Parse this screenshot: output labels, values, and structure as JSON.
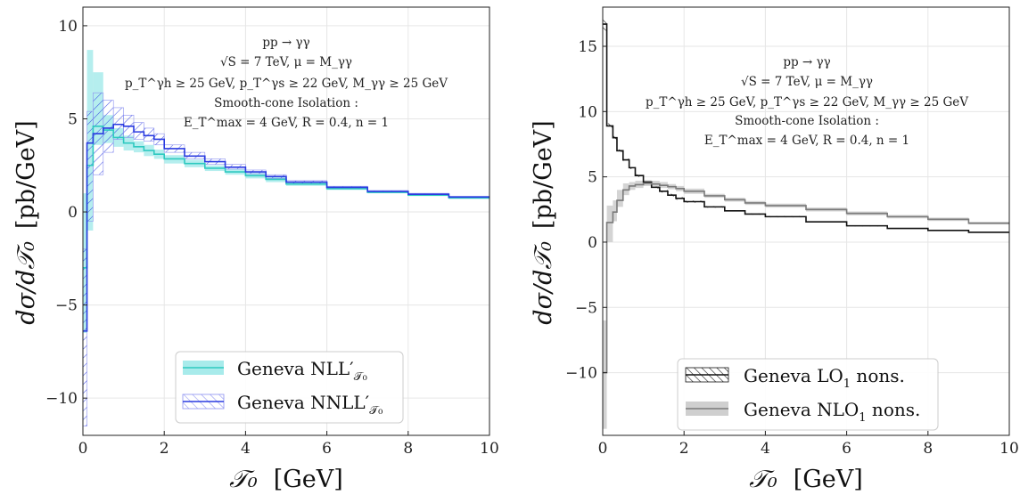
{
  "chart_data": [
    {
      "type": "line",
      "title": "",
      "xlabel_symbol": "𝒯₀",
      "xlabel_unit": "[GeV]",
      "ylabel_symbol": "dσ/d𝒯₀",
      "ylabel_unit": "[pb/GeV]",
      "xlim": [
        0,
        10
      ],
      "ylim": [
        -12,
        11
      ],
      "xticks": [
        "0",
        "2",
        "4",
        "6",
        "8",
        "10"
      ],
      "yticks": [
        "−10",
        "−5",
        "0",
        "5",
        "10"
      ],
      "grid": true,
      "legend_position": "lower-center",
      "annotation": [
        "pp → γγ",
        "√S = 7 TeV, μ = M_γγ",
        "p_T^γh ≥ 25 GeV,  p_T^γs ≥ 22 GeV,  M_γγ ≥ 25 GeV",
        "Smooth-cone Isolation :",
        "E_T^max = 4 GeV,  R = 0.4,  n = 1"
      ],
      "bin_edges": [
        0,
        0.1,
        0.25,
        0.5,
        0.75,
        1.0,
        1.25,
        1.5,
        1.75,
        2.0,
        2.5,
        3.0,
        3.5,
        4.0,
        4.5,
        5.0,
        6.0,
        7.0,
        8.0,
        9.0,
        10.0
      ],
      "series": [
        {
          "name": "GENEVA NLL′_𝒯₀",
          "legend_main": "Geneva NLL′",
          "legend_sub": "𝒯₀",
          "color": "#2ec9c0",
          "band_color": "#a8ebeb",
          "values": [
            -3.0,
            2.5,
            4.6,
            4.4,
            4.0,
            3.7,
            3.5,
            3.3,
            3.1,
            2.85,
            2.6,
            2.35,
            2.15,
            1.95,
            1.75,
            1.5,
            1.25,
            1.05,
            0.9,
            0.75
          ],
          "lower": [
            -6.5,
            -1.0,
            3.6,
            3.7,
            3.5,
            3.3,
            3.2,
            3.0,
            2.85,
            2.6,
            2.4,
            2.2,
            2.0,
            1.8,
            1.6,
            1.4,
            1.18,
            1.0,
            0.85,
            0.7
          ],
          "upper": [
            1.0,
            8.7,
            7.5,
            5.2,
            4.5,
            4.1,
            3.8,
            3.6,
            3.35,
            3.05,
            2.8,
            2.5,
            2.3,
            2.1,
            1.9,
            1.6,
            1.32,
            1.1,
            0.95,
            0.8
          ]
        },
        {
          "name": "GENEVA NNLL′_𝒯₀",
          "legend_main": "Geneva NNLL′",
          "legend_sub": "𝒯₀",
          "color": "#2a3be0",
          "band_color": "#7a86f0",
          "values": [
            -6.4,
            3.7,
            4.2,
            4.5,
            4.7,
            4.6,
            4.3,
            4.1,
            3.9,
            3.4,
            3.0,
            2.7,
            2.4,
            2.15,
            1.9,
            1.6,
            1.32,
            1.1,
            0.95,
            0.8
          ],
          "lower": [
            -11.5,
            -0.5,
            2.0,
            3.2,
            3.9,
            4.0,
            3.9,
            3.8,
            3.6,
            3.2,
            2.85,
            2.55,
            2.3,
            2.05,
            1.8,
            1.52,
            1.26,
            1.05,
            0.9,
            0.76
          ],
          "upper": [
            -2.0,
            5.4,
            6.4,
            6.0,
            5.6,
            5.2,
            4.8,
            4.5,
            4.2,
            3.6,
            3.2,
            2.85,
            2.55,
            2.25,
            2.0,
            1.68,
            1.38,
            1.15,
            1.0,
            0.84
          ]
        }
      ]
    },
    {
      "type": "line",
      "title": "",
      "xlabel_symbol": "𝒯₀",
      "xlabel_unit": "[GeV]",
      "ylabel_symbol": "dσ/d𝒯₀",
      "ylabel_unit": "[pb/GeV]",
      "xlim": [
        0,
        10
      ],
      "ylim": [
        -14.8,
        18
      ],
      "xticks": [
        "0",
        "2",
        "4",
        "6",
        "8",
        "10"
      ],
      "yticks": [
        "−10",
        "−5",
        "0",
        "5",
        "10",
        "15"
      ],
      "grid": true,
      "legend_position": "lower-center",
      "annotation": [
        "pp → γγ",
        "√S = 7 TeV, μ = M_γγ",
        "p_T^γh ≥ 25 GeV,  p_T^γs ≥ 22 GeV,  M_γγ ≥ 25 GeV",
        "Smooth-cone Isolation :",
        "E_T^max = 4 GeV,  R = 0.4,  n = 1"
      ],
      "bin_edges": [
        0,
        0.1,
        0.25,
        0.35,
        0.5,
        0.65,
        0.8,
        1.0,
        1.2,
        1.4,
        1.6,
        1.8,
        2.0,
        2.5,
        3.0,
        3.5,
        4.0,
        5.0,
        6.0,
        7.0,
        8.0,
        9.0,
        10.0
      ],
      "series": [
        {
          "name": "GENEVA LO₁ nons.",
          "legend_main": "Geneva LO",
          "legend_sub": "1",
          "legend_suffix": " nons.",
          "color": "#111111",
          "band_color": "#444444",
          "values": [
            16.7,
            8.9,
            8.0,
            7.0,
            6.3,
            5.7,
            5.1,
            4.6,
            4.2,
            3.9,
            3.6,
            3.35,
            3.1,
            2.7,
            2.4,
            2.15,
            1.95,
            1.55,
            1.25,
            1.05,
            0.9,
            0.75
          ],
          "lower": [
            16.2,
            8.7,
            7.85,
            6.9,
            6.2,
            5.6,
            5.0,
            4.5,
            4.1,
            3.8,
            3.5,
            3.25,
            3.02,
            2.64,
            2.35,
            2.1,
            1.9,
            1.5,
            1.21,
            1.02,
            0.87,
            0.72
          ],
          "upper": [
            17.2,
            9.1,
            8.15,
            7.1,
            6.4,
            5.8,
            5.2,
            4.7,
            4.3,
            4.0,
            3.7,
            3.45,
            3.18,
            2.76,
            2.45,
            2.2,
            2.0,
            1.6,
            1.29,
            1.08,
            0.93,
            0.78
          ]
        },
        {
          "name": "GENEVA NLO₁ nons.",
          "legend_main": "Geneva NLO",
          "legend_sub": "1",
          "legend_suffix": " nons.",
          "color": "#7a7a7a",
          "band_color": "#cfcfcf",
          "values": [
            -10.0,
            1.5,
            2.3,
            3.2,
            4.0,
            4.3,
            4.4,
            4.5,
            4.45,
            4.35,
            4.25,
            4.1,
            3.9,
            3.55,
            3.25,
            3.0,
            2.8,
            2.5,
            2.2,
            1.95,
            1.75,
            1.45
          ],
          "lower": [
            -14.3,
            0.0,
            1.6,
            2.7,
            3.6,
            4.0,
            4.15,
            4.3,
            4.25,
            4.15,
            4.05,
            3.9,
            3.7,
            3.4,
            3.1,
            2.85,
            2.65,
            2.35,
            2.05,
            1.82,
            1.62,
            1.35
          ],
          "upper": [
            -6.0,
            2.8,
            3.2,
            4.0,
            4.5,
            4.6,
            4.7,
            4.75,
            4.7,
            4.6,
            4.45,
            4.3,
            4.1,
            3.7,
            3.4,
            3.15,
            2.95,
            2.65,
            2.35,
            2.08,
            1.88,
            1.55
          ]
        }
      ]
    }
  ]
}
